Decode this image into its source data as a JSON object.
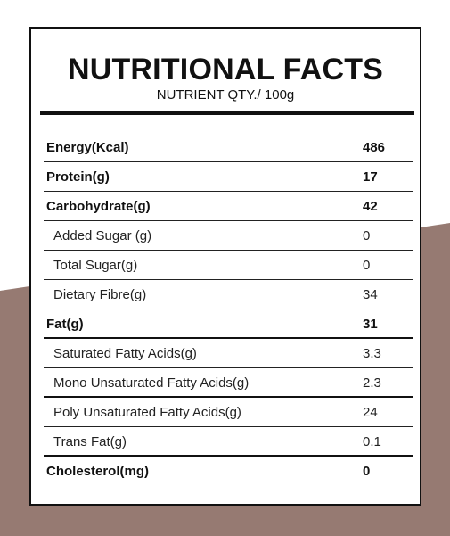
{
  "colors": {
    "background_shape": "#967a72",
    "panel": "#ffffff",
    "text": "#111111"
  },
  "header": {
    "title": "NUTRITIONAL FACTS",
    "subtitle": "NUTRIENT QTY./ 100g"
  },
  "rows": [
    {
      "label": "Energy(Kcal)",
      "value": "486",
      "bold": true
    },
    {
      "label": "Protein(g)",
      "value": "17",
      "bold": true
    },
    {
      "label": "Carbohydrate(g)",
      "value": "42",
      "bold": true
    },
    {
      "label": "Added Sugar (g)",
      "value": "0",
      "bold": false
    },
    {
      "label": "Total Sugar(g)",
      "value": "0",
      "bold": false
    },
    {
      "label": "Dietary Fibre(g)",
      "value": "34",
      "bold": false
    },
    {
      "label": "Fat(g)",
      "value": "31",
      "bold": true
    },
    {
      "label": "Saturated Fatty Acids(g)",
      "value": "3.3",
      "bold": false
    },
    {
      "label": "Mono Unsaturated Fatty Acids(g)",
      "value": "2.3",
      "bold": false
    },
    {
      "label": "Poly Unsaturated Fatty Acids(g)",
      "value": "24",
      "bold": false
    },
    {
      "label": "Trans Fat(g)",
      "value": "0.1",
      "bold": false
    },
    {
      "label": "Cholesterol(mg)",
      "value": "0",
      "bold": true
    }
  ]
}
